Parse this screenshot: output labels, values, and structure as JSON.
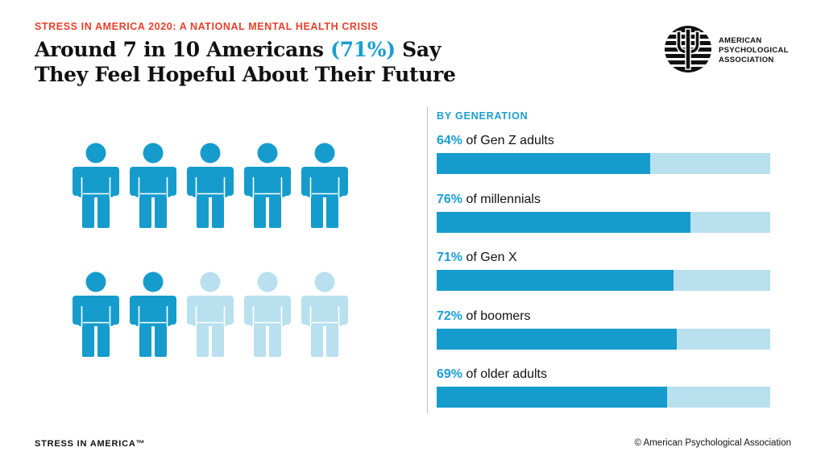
{
  "header": {
    "kicker": "STRESS IN AMERICA 2020: A NATIONAL MENTAL HEALTH CRISIS",
    "headline_part1": "Around 7 in 10 Americans ",
    "headline_accent": "(71%)",
    "headline_part2": " Say",
    "headline_line2": "They Feel Hopeful About Their Future"
  },
  "logo": {
    "icon": "psi-symbol-icon",
    "line1": "AMERICAN",
    "line2": "PSYCHOLOGICAL",
    "line3": "ASSOCIATION"
  },
  "colors": {
    "accent": "#1a9ed0",
    "bar_fill": "#159ccc",
    "bar_track": "#b9e0ef",
    "kicker": "#e8402a",
    "person_filled": "#159ccc",
    "person_empty": "#b9e0ef"
  },
  "pictogram": {
    "icon": "person-icon",
    "total": 10,
    "filled": 7
  },
  "chart_data": {
    "type": "bar",
    "title": "BY GENERATION",
    "orientation": "horizontal",
    "xlim": [
      0,
      100
    ],
    "categories": [
      "of Gen Z adults",
      "of millennials",
      "of Gen X",
      "of boomers",
      "of older adults"
    ],
    "values": [
      64,
      76,
      71,
      72,
      69
    ],
    "value_labels": [
      "64%",
      "76%",
      "71%",
      "72%",
      "69%"
    ]
  },
  "footer": {
    "left": "STRESS IN AMERICA™",
    "right": "© American Psychological Association"
  }
}
